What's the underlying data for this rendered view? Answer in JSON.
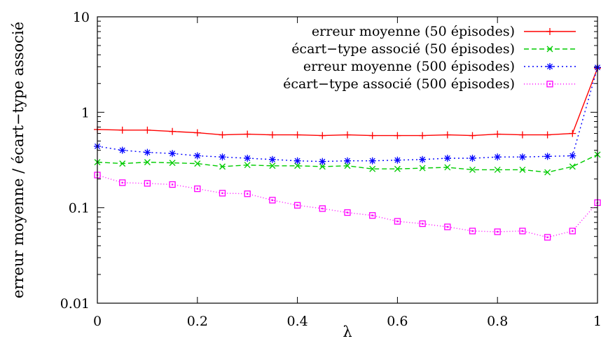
{
  "chart_data": {
    "type": "line",
    "xlabel": "λ",
    "ylabel": "erreur moyenne / écart−type associé",
    "xlim": [
      0,
      1
    ],
    "ylim": [
      0.01,
      10
    ],
    "yscale": "log",
    "xticks": [
      {
        "value": 0,
        "label": "0"
      },
      {
        "value": 0.2,
        "label": "0.2"
      },
      {
        "value": 0.4,
        "label": "0.4"
      },
      {
        "value": 0.6,
        "label": "0.6"
      },
      {
        "value": 0.8,
        "label": "0.8"
      },
      {
        "value": 1,
        "label": "1"
      }
    ],
    "yticks": [
      {
        "value": 0.01,
        "label": "0.01"
      },
      {
        "value": 0.1,
        "label": "0.1"
      },
      {
        "value": 1,
        "label": "1"
      },
      {
        "value": 10,
        "label": "10"
      }
    ],
    "legend_position": "top-right",
    "x": [
      0,
      0.05,
      0.1,
      0.15,
      0.2,
      0.25,
      0.3,
      0.35,
      0.4,
      0.45,
      0.5,
      0.55,
      0.6,
      0.65,
      0.7,
      0.75,
      0.8,
      0.85,
      0.9,
      0.95,
      1
    ],
    "series": [
      {
        "name": "erreur moyenne (50 épisodes)",
        "color": "#ff0000",
        "marker": "plus",
        "dash": "",
        "values": [
          0.66,
          0.65,
          0.65,
          0.63,
          0.61,
          0.58,
          0.59,
          0.58,
          0.58,
          0.57,
          0.58,
          0.57,
          0.57,
          0.57,
          0.58,
          0.57,
          0.59,
          0.58,
          0.58,
          0.6,
          2.9
        ]
      },
      {
        "name": "écart−type associé (50 épisodes)",
        "color": "#00cc00",
        "marker": "cross",
        "dash": "7 4",
        "values": [
          0.3,
          0.29,
          0.3,
          0.295,
          0.29,
          0.27,
          0.28,
          0.275,
          0.275,
          0.27,
          0.275,
          0.255,
          0.255,
          0.26,
          0.265,
          0.25,
          0.25,
          0.25,
          0.235,
          0.27,
          0.36
        ]
      },
      {
        "name": "erreur moyenne (500 épisodes)",
        "color": "#0000ff",
        "marker": "star",
        "dash": "2 4",
        "values": [
          0.44,
          0.4,
          0.38,
          0.37,
          0.35,
          0.34,
          0.33,
          0.32,
          0.31,
          0.305,
          0.31,
          0.31,
          0.315,
          0.32,
          0.33,
          0.33,
          0.34,
          0.34,
          0.345,
          0.35,
          2.95
        ]
      },
      {
        "name": "écart−type associé (500 épisodes)",
        "color": "#ff00ff",
        "marker": "square",
        "dash": "1 3",
        "values": [
          0.22,
          0.183,
          0.18,
          0.175,
          0.158,
          0.142,
          0.14,
          0.12,
          0.106,
          0.098,
          0.089,
          0.083,
          0.072,
          0.068,
          0.063,
          0.057,
          0.056,
          0.057,
          0.049,
          0.057,
          0.113
        ]
      }
    ]
  }
}
